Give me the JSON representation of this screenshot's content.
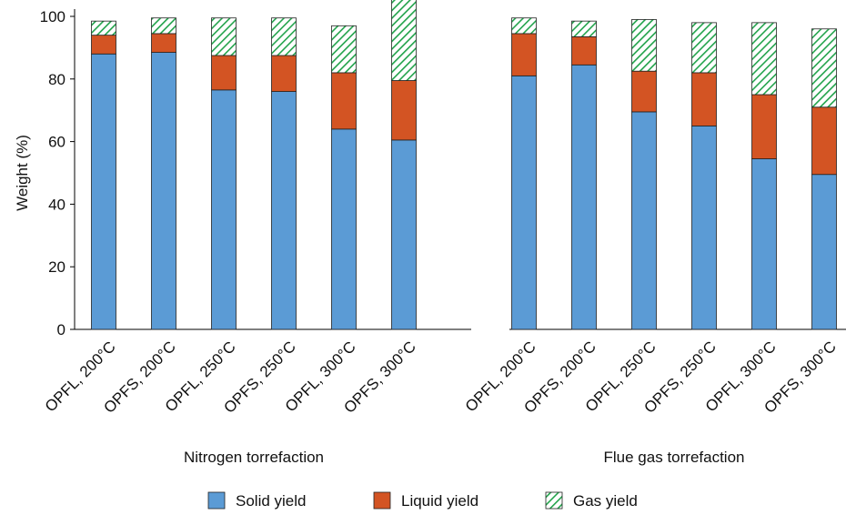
{
  "chart_data": {
    "type": "bar",
    "stacked": true,
    "ylabel": "Weight (%)",
    "ylim": [
      0,
      100
    ],
    "yticks": [
      0,
      20,
      40,
      60,
      80,
      100
    ],
    "categories": [
      "OPFL, 200°C",
      "OPFS, 200°C",
      "OPFL, 250°C",
      "OPFS, 250°C",
      "OPFL, 300°C",
      "OPFS, 300°C"
    ],
    "groups": [
      {
        "name": "Nitrogen torrefaction",
        "series": [
          {
            "name": "Solid yield",
            "values": [
              88,
              88.5,
              76.5,
              76,
              64,
              60.5
            ]
          },
          {
            "name": "Liquid yield",
            "values": [
              6,
              6,
              11,
              11.5,
              18,
              19
            ]
          },
          {
            "name": "Gas yield",
            "values": [
              4.5,
              5,
              12,
              12,
              15,
              27
            ]
          }
        ]
      },
      {
        "name": "Flue gas torrefaction",
        "series": [
          {
            "name": "Solid yield",
            "values": [
              81,
              84.5,
              69.5,
              65,
              54.5,
              49.5
            ]
          },
          {
            "name": "Liquid yield",
            "values": [
              13.5,
              9,
              13,
              17,
              20.5,
              21.5
            ]
          },
          {
            "name": "Gas yield",
            "values": [
              5,
              5,
              16.5,
              16,
              23,
              25
            ]
          }
        ]
      }
    ],
    "legend": [
      "Solid yield",
      "Liquid yield",
      "Gas yield"
    ],
    "legend_position": "bottom-center",
    "colors": {
      "solid": "#5b9bd5",
      "liquid": "#d35423",
      "gas_stripe": "#22a34b",
      "gas_bg": "#ffffff"
    }
  }
}
